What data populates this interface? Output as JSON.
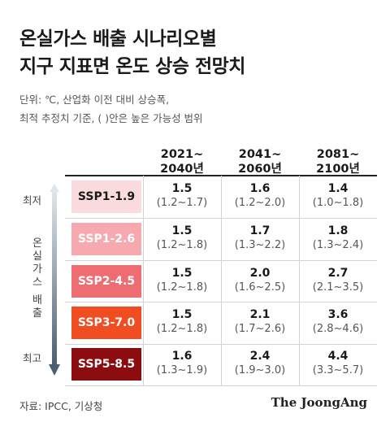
{
  "title": {
    "line1": "온실가스 배출 시나리오별",
    "line2": "지구 지표면 온도 상승 전망치"
  },
  "subtitle": {
    "line1": "단위: ℃, 산업화 이전 대비 상승폭,",
    "line2": "최적 추정치 기준, ( )안은 높은 가능성 범위"
  },
  "axis": {
    "low_label": "최저",
    "high_label": "최고",
    "vertical_label": [
      "온",
      "실",
      "가",
      "스",
      "",
      "배",
      "출"
    ]
  },
  "columns": [
    {
      "line1": "2021~",
      "line2": "2040년"
    },
    {
      "line1": "2041~",
      "line2": "2060년"
    },
    {
      "line1": "2081~",
      "line2": "2100년"
    }
  ],
  "rows": [
    {
      "scenario": "SSP1-1.9",
      "color": "#fbdcde",
      "text_color": "#1a1a1a",
      "cells": [
        {
          "value": "1.5",
          "range": "(1.2~1.7)"
        },
        {
          "value": "1.6",
          "range": "(1.2~2.0)"
        },
        {
          "value": "1.4",
          "range": "(1.0~1.8)"
        }
      ]
    },
    {
      "scenario": "SSP1-2.6",
      "color": "#f6a9ae",
      "text_color": "#ffffff",
      "cells": [
        {
          "value": "1.5",
          "range": "(1.2~1.8)"
        },
        {
          "value": "1.7",
          "range": "(1.3~2.2)"
        },
        {
          "value": "1.8",
          "range": "(1.3~2.4)"
        }
      ]
    },
    {
      "scenario": "SSP2-4.5",
      "color": "#ee6d73",
      "text_color": "#ffffff",
      "cells": [
        {
          "value": "1.5",
          "range": "(1.2~1.8)"
        },
        {
          "value": "2.0",
          "range": "(1.6~2.5)"
        },
        {
          "value": "2.7",
          "range": "(2.1~3.5)"
        }
      ]
    },
    {
      "scenario": "SSP3-7.0",
      "color": "#f04d22",
      "text_color": "#ffffff",
      "cells": [
        {
          "value": "1.5",
          "range": "(1.2~1.8)"
        },
        {
          "value": "2.1",
          "range": "(1.7~2.6)"
        },
        {
          "value": "3.6",
          "range": "(2.8~4.6)"
        }
      ]
    },
    {
      "scenario": "SSP5-8.5",
      "color": "#8b0d10",
      "text_color": "#ffffff",
      "cells": [
        {
          "value": "1.6",
          "range": "(1.3~1.9)"
        },
        {
          "value": "2.4",
          "range": "(1.9~3.0)"
        },
        {
          "value": "4.4",
          "range": "(3.3~5.7)"
        }
      ]
    }
  ],
  "chart_data": {
    "type": "table",
    "title": "온실가스 배출 시나리오별 지구 지표면 온도 상승 전망치",
    "unit": "℃",
    "columns": [
      "2021~2040년",
      "2041~2060년",
      "2081~2100년"
    ],
    "series": [
      {
        "name": "SSP1-1.9",
        "values": [
          1.5,
          1.6,
          1.4
        ],
        "low": [
          1.2,
          1.2,
          1.0
        ],
        "high": [
          1.7,
          2.0,
          1.8
        ]
      },
      {
        "name": "SSP1-2.6",
        "values": [
          1.5,
          1.7,
          1.8
        ],
        "low": [
          1.2,
          1.3,
          1.3
        ],
        "high": [
          1.8,
          2.2,
          2.4
        ]
      },
      {
        "name": "SSP2-4.5",
        "values": [
          1.5,
          2.0,
          2.7
        ],
        "low": [
          1.2,
          1.6,
          2.1
        ],
        "high": [
          1.8,
          2.5,
          3.5
        ]
      },
      {
        "name": "SSP3-7.0",
        "values": [
          1.5,
          2.1,
          3.6
        ],
        "low": [
          1.2,
          1.7,
          2.8
        ],
        "high": [
          1.8,
          2.6,
          4.6
        ]
      },
      {
        "name": "SSP5-8.5",
        "values": [
          1.6,
          2.4,
          4.4
        ],
        "low": [
          1.3,
          1.9,
          3.3
        ],
        "high": [
          1.9,
          3.0,
          5.7
        ]
      }
    ]
  },
  "footer": {
    "source": "자료: IPCC, 기상청",
    "brand": "The JoongAng"
  }
}
